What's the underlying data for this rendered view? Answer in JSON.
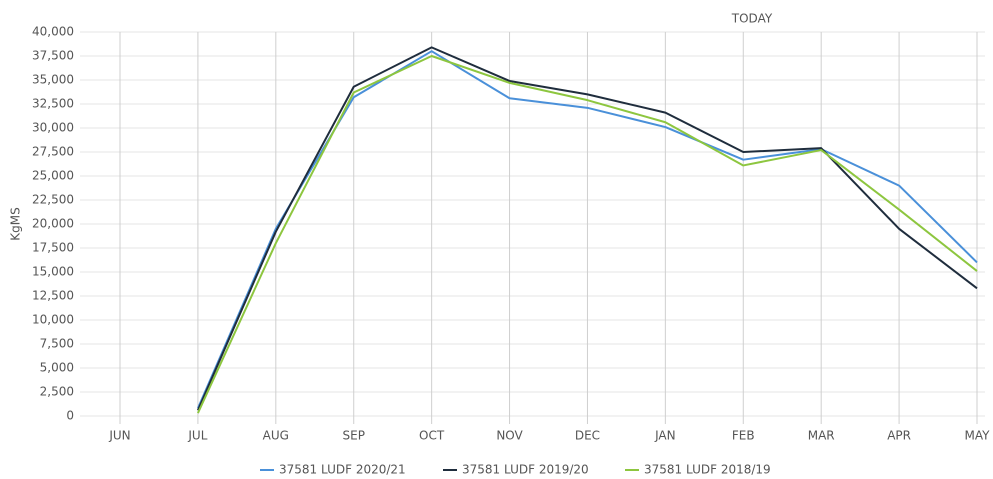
{
  "chart_data": {
    "type": "line",
    "annotation": "TODAY",
    "y_label": "KgMS",
    "categories": [
      "JUN",
      "JUL",
      "AUG",
      "SEP",
      "OCT",
      "NOV",
      "DEC",
      "JAN",
      "FEB",
      "MAR",
      "APR",
      "MAY"
    ],
    "series": [
      {
        "name": "37581 LUDF 2020/21",
        "color": "#4a90d9",
        "values": [
          null,
          800,
          19500,
          33200,
          38000,
          33100,
          32100,
          30100,
          26700,
          27800,
          24000,
          16000
        ]
      },
      {
        "name": "37581 LUDF 2019/20",
        "color": "#1f2d3d",
        "values": [
          null,
          600,
          19200,
          34300,
          38400,
          34900,
          33500,
          31600,
          27500,
          27900,
          19500,
          13300
        ]
      },
      {
        "name": "37581 LUDF 2018/19",
        "color": "#8dc63f",
        "values": [
          null,
          300,
          18000,
          33700,
          37500,
          34700,
          32900,
          30600,
          26100,
          27700,
          21500,
          15100
        ]
      }
    ],
    "ylim": [
      0,
      40000
    ],
    "yticks": [
      0,
      {
        "value": 2500,
        "label": "2,500"
      },
      {
        "value": 5000,
        "label": "5,000"
      },
      {
        "value": 7500,
        "label": "7,500"
      },
      {
        "value": 10000,
        "label": "10,000"
      },
      {
        "value": 12500,
        "label": "12,500"
      },
      {
        "value": 15000,
        "label": "15,000"
      },
      {
        "value": 17500,
        "label": "17,500"
      },
      {
        "value": 20000,
        "label": "20,000"
      },
      {
        "value": 22500,
        "label": "22,500"
      },
      {
        "value": 25000,
        "label": "25,000"
      },
      {
        "value": 27500,
        "label": "27,500"
      },
      {
        "value": 30000,
        "label": "30,000"
      },
      {
        "value": 32500,
        "label": "32,500"
      },
      {
        "value": 35000,
        "label": "35,000"
      },
      {
        "value": 37500,
        "label": "37,500"
      },
      {
        "value": 40000,
        "label": "40,000"
      }
    ],
    "grid": true
  }
}
